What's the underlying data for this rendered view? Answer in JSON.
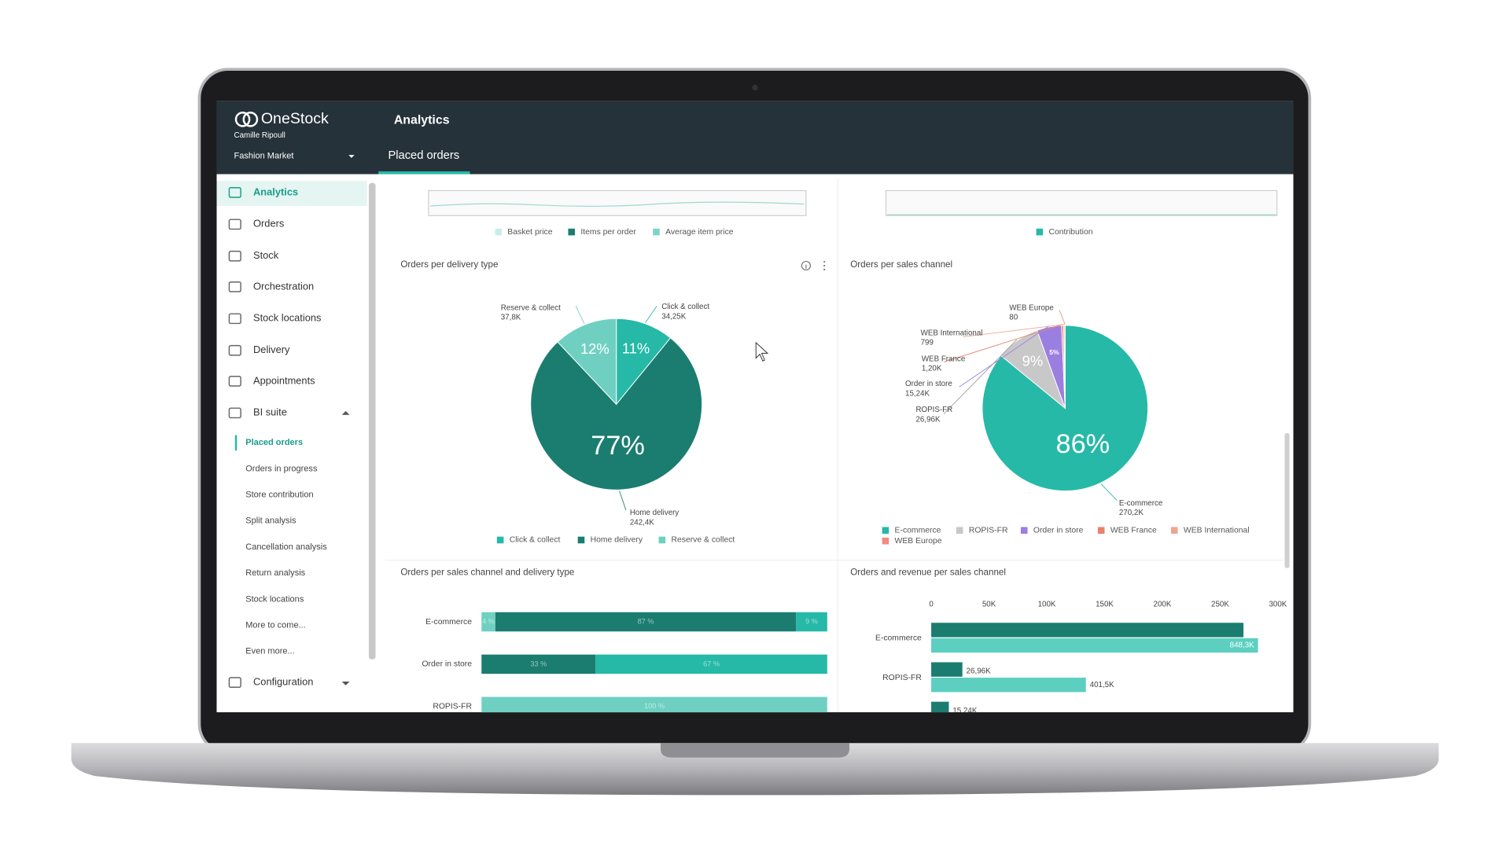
{
  "header": {
    "brand": "OneStock",
    "user": "Camille Ripoull",
    "store": "Fashion Market",
    "title": "Analytics",
    "tab": "Placed orders"
  },
  "sidebar": {
    "items": [
      "Analytics",
      "Orders",
      "Stock",
      "Orchestration",
      "Stock locations",
      "Delivery",
      "Appointments",
      "BI suite"
    ],
    "submenu": [
      "Placed orders",
      "Orders in progress",
      "Store contribution",
      "Split analysis",
      "Cancellation analysis",
      "Return analysis",
      "Stock locations",
      "More to come...",
      "Even more..."
    ],
    "footer_item": "Configuration"
  },
  "top_legends": {
    "left": [
      "Basket price",
      "Items per order",
      "Average item price"
    ],
    "left_colors": [
      "#c9eee8",
      "#1b7d70",
      "#7fd3c7"
    ],
    "right": [
      "Contribution"
    ],
    "right_colors": [
      "#26b9a7"
    ]
  },
  "chart_data": [
    {
      "type": "pie",
      "title": "Orders per delivery type",
      "categories": [
        "Click & collect",
        "Home delivery",
        "Reserve & collect"
      ],
      "values": [
        34250,
        242400,
        37800
      ],
      "value_labels": [
        "34,25K",
        "242,4K",
        "37,8K"
      ],
      "percent_labels": [
        "11%",
        "77%",
        "12%"
      ],
      "colors": [
        "#26b9a7",
        "#1b7d70",
        "#6fd0c2"
      ]
    },
    {
      "type": "pie",
      "title": "Orders per sales channel",
      "categories": [
        "E-commerce",
        "ROPIS-FR",
        "Order in store",
        "WEB France",
        "WEB International",
        "WEB Europe"
      ],
      "values": [
        270200,
        26960,
        15240,
        1200,
        799,
        80
      ],
      "value_labels": [
        "270,2K",
        "26,96K",
        "15,24K",
        "1,20K",
        "799",
        "80"
      ],
      "percent_labels": [
        "86%",
        "9%",
        "5%",
        null,
        null,
        null
      ],
      "colors": [
        "#26b9a7",
        "#c8c8c8",
        "#9b7fe0",
        "#e8836b",
        "#f0a58f",
        "#f08c80"
      ]
    },
    {
      "type": "stacked_bar",
      "title": "Orders per sales channel and delivery type",
      "categories": [
        "E-commerce",
        "Order in store",
        "ROPIS-FR"
      ],
      "xlim": [
        0,
        100
      ],
      "series": [
        {
          "color": "#6fd0c2",
          "values": [
            4,
            0,
            100
          ],
          "value_labels": [
            "4 %",
            null,
            "100 %"
          ]
        },
        {
          "color": "#1b7d70",
          "values": [
            87,
            33,
            0
          ],
          "value_labels": [
            "87 %",
            "33 %",
            null
          ]
        },
        {
          "color": "#26b9a7",
          "values": [
            9,
            67,
            0
          ],
          "value_labels": [
            "9 %",
            "67 %",
            null
          ]
        }
      ]
    },
    {
      "type": "grouped_bar",
      "title": "Orders and revenue per sales channel",
      "categories": [
        "E-commerce",
        "ROPIS-FR",
        null
      ],
      "xlim": [
        0,
        300000
      ],
      "xticks": [
        0,
        {
          "value": 50000,
          "label": "50K"
        },
        {
          "value": 100000,
          "label": "100K"
        },
        {
          "value": 150000,
          "label": "150K"
        },
        {
          "value": 200000,
          "label": "200K"
        },
        {
          "value": 250000,
          "label": "250K"
        },
        {
          "value": 300000,
          "label": "300K"
        }
      ],
      "x2lim": [
        0,
        900000
      ],
      "series": [
        {
          "color": "#1b7d70",
          "values": [
            270200,
            26960,
            15240
          ],
          "value_labels": [
            null,
            "26,96K",
            "15,24K"
          ]
        },
        {
          "color": "#5ccfc0",
          "axis": "x2",
          "values": [
            848300,
            401500,
            null
          ],
          "value_labels": [
            "848,3K",
            "401,5K",
            null
          ]
        }
      ]
    }
  ]
}
